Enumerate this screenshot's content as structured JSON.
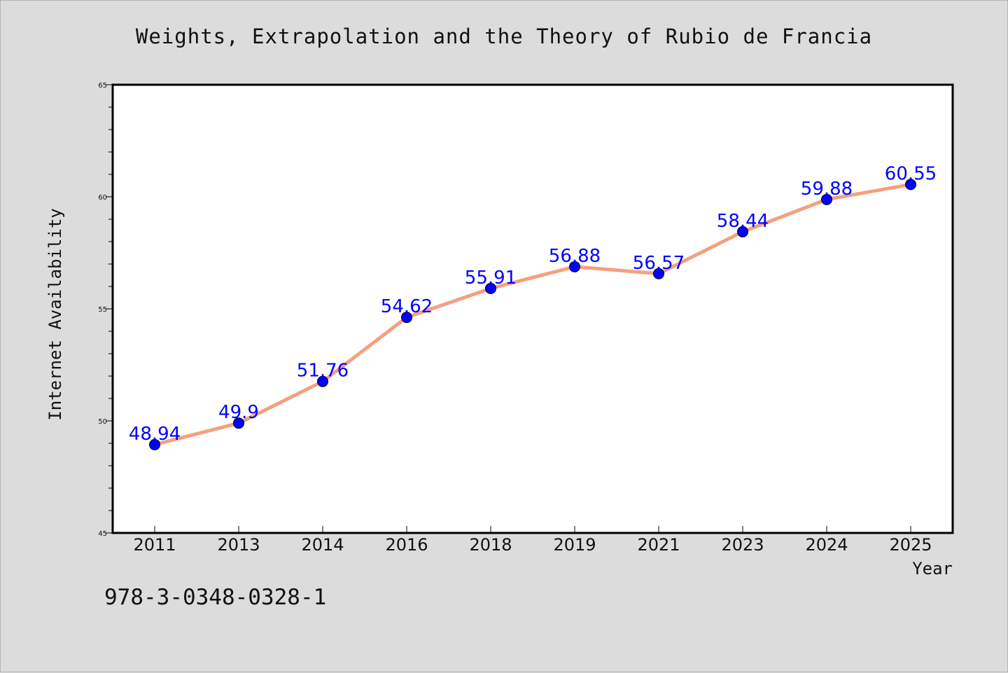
{
  "isbn": "978-3-0348-0328-1",
  "chart_data": {
    "type": "line",
    "title": "Weights, Extrapolation and the Theory of Rubio de Francia",
    "xlabel": "Year",
    "ylabel": "Internet Availability",
    "categories": [
      "2011",
      "2013",
      "2014",
      "2016",
      "2018",
      "2019",
      "2021",
      "2023",
      "2024",
      "2025"
    ],
    "values": [
      48.94,
      49.9,
      51.76,
      54.62,
      55.91,
      56.88,
      56.57,
      58.44,
      59.88,
      60.55
    ],
    "data_labels": [
      "48.94",
      "49.9",
      "51.76",
      "54.62",
      "55.91",
      "56.88",
      "56.57",
      "58.44",
      "59.88",
      "60.55"
    ],
    "ylim": [
      45,
      65
    ],
    "yticks": [
      45,
      50,
      55,
      60,
      65
    ],
    "grid": false,
    "legend": "none",
    "line_color": "#f4a07f",
    "marker_color": "#0000ff",
    "label_color": "#0000ff"
  }
}
